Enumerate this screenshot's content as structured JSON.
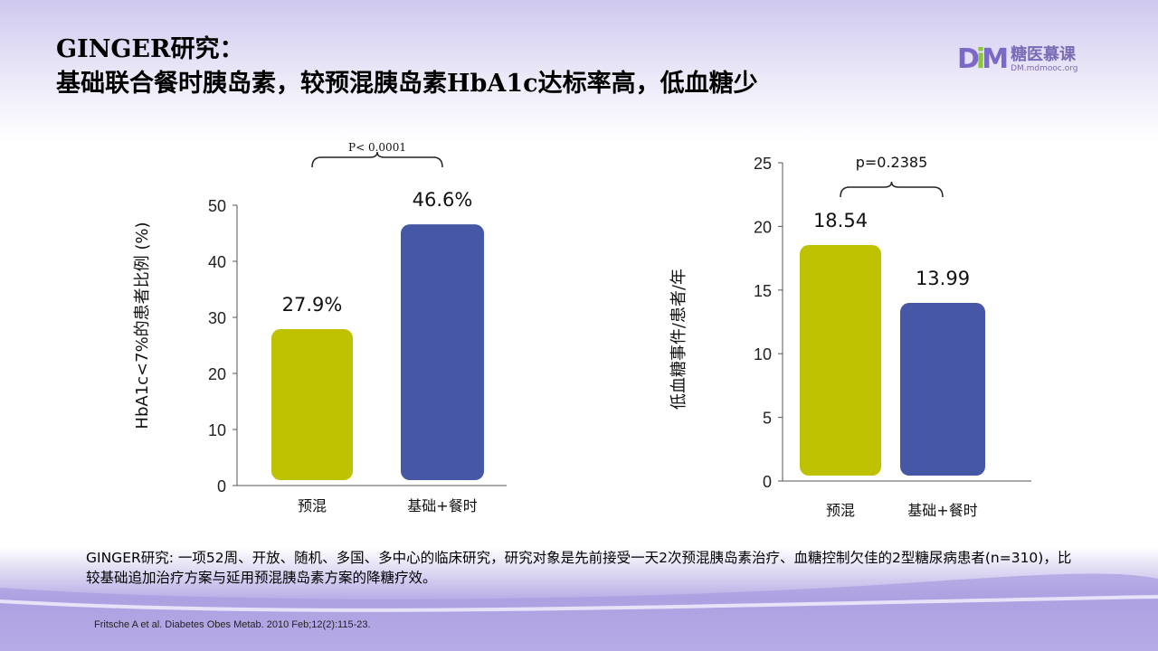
{
  "title": {
    "line1": "GINGER研究：",
    "line2": "基础联合餐时胰岛素，较预混胰岛素HbA1c达标率高，低血糖少"
  },
  "logo": {
    "name": "糖医慕课",
    "url_text": "DM.mdmooc.org",
    "mark": "DM"
  },
  "colors": {
    "premix": "#bfc200",
    "basal_bolus": "#4557a5"
  },
  "chart_data": [
    {
      "type": "bar",
      "title": "",
      "ylabel": "HbA1c<7%的患者比例 (%)",
      "xlabel": "",
      "categories": [
        "预混",
        "基础+餐时"
      ],
      "values": [
        27.9,
        46.6
      ],
      "data_labels": [
        "27.9%",
        "46.6%"
      ],
      "ylim": [
        0,
        50
      ],
      "yticks": [
        0,
        10,
        20,
        30,
        40,
        50
      ],
      "annotation": "P< 0.0001",
      "grid": false
    },
    {
      "type": "bar",
      "title": "",
      "ylabel": "低血糖事件/患者/年",
      "xlabel": "",
      "categories": [
        "预混",
        "基础+餐时"
      ],
      "values": [
        18.54,
        13.99
      ],
      "data_labels": [
        "18.54",
        "13.99"
      ],
      "ylim": [
        0,
        25
      ],
      "yticks": [
        0,
        5,
        10,
        15,
        20,
        25
      ],
      "annotation": "p=0.2385",
      "grid": false
    }
  ],
  "note": "GINGER研究: 一项52周、开放、随机、多国、多中心的临床研究，研究对象是先前接受一天2次预混胰岛素治疗、血糖控制欠佳的2型糖尿病患者(n=310)，比较基础追加治疗方案与延用预混胰岛素方案的降糖疗效。",
  "reference": "Fritsche A et al. Diabetes Obes Metab. 2010 Feb;12(2):115-23."
}
